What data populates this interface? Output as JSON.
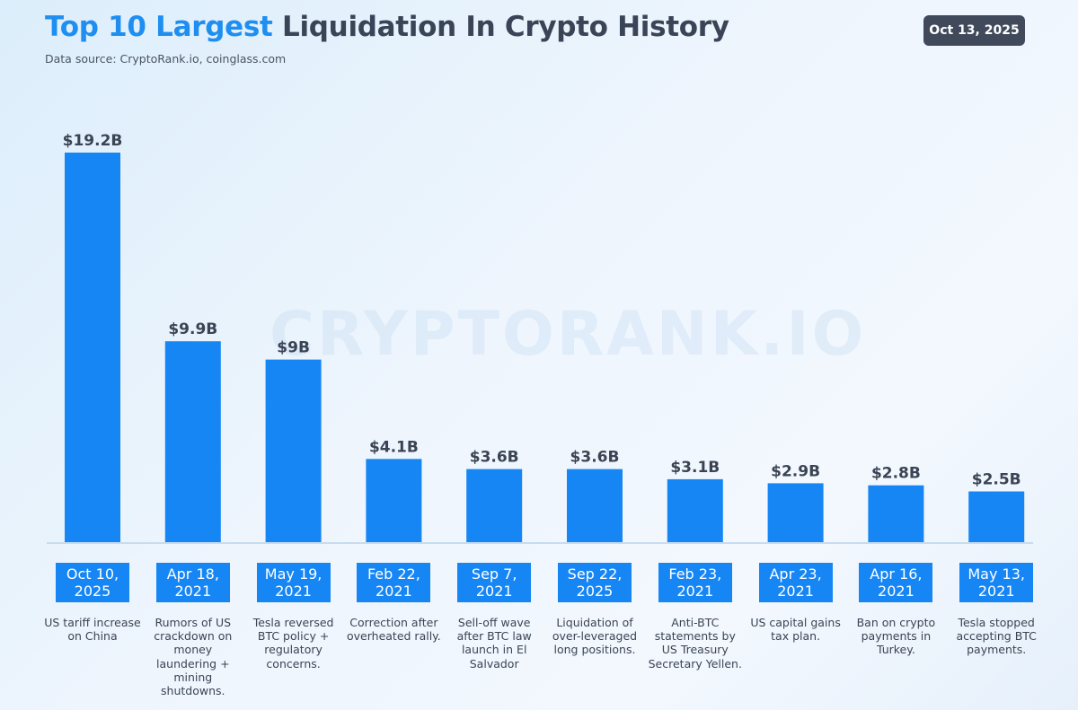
{
  "header": {
    "title_accent": "Top 10 Largest",
    "title_rest": "Liquidation In Crypto History",
    "source": "Data source: CryptoRank.io, coinglass.com",
    "date_badge": "Oct 13, 2025"
  },
  "watermark": "CRYPTORANK.IO",
  "colors": {
    "bar": "#1786f5",
    "accent": "#1f8ef1",
    "badge": "#414a5b",
    "baseline": "#c8dcf0"
  },
  "chart_data": {
    "type": "bar",
    "title": "Top 10 Largest Liquidation In Crypto History",
    "unit": "B",
    "values": [
      19.2,
      9.9,
      9.0,
      4.1,
      3.6,
      3.6,
      3.1,
      2.9,
      2.8,
      2.5
    ],
    "value_labels": [
      "$19.2B",
      "$9.9B",
      "$9B",
      "$4.1B",
      "$3.6B",
      "$3.6B",
      "$3.1B",
      "$2.9B",
      "$2.8B",
      "$2.5B"
    ],
    "categories": [
      {
        "date_line1": "Oct 10,",
        "date_line2": "2025",
        "desc": "US tariff increase on China"
      },
      {
        "date_line1": "Apr 18,",
        "date_line2": "2021",
        "desc": "Rumors of US crackdown on money laundering + mining shutdowns."
      },
      {
        "date_line1": "May 19,",
        "date_line2": "2021",
        "desc": "Tesla reversed BTC policy + regulatory concerns."
      },
      {
        "date_line1": "Feb 22,",
        "date_line2": "2021",
        "desc": "Correction after overheated rally."
      },
      {
        "date_line1": "Sep 7,",
        "date_line2": "2021",
        "desc": "Sell-off wave after BTC law launch in El Salvador"
      },
      {
        "date_line1": "Sep 22,",
        "date_line2": "2025",
        "desc": "Liquidation of over-leveraged long positions."
      },
      {
        "date_line1": "Feb 23,",
        "date_line2": "2021",
        "desc": "Anti-BTC statements by US Treasury Secretary Yellen."
      },
      {
        "date_line1": "Apr 23,",
        "date_line2": "2021",
        "desc": "US capital gains tax plan."
      },
      {
        "date_line1": "Apr 16,",
        "date_line2": "2021",
        "desc": "Ban on crypto payments in Turkey."
      },
      {
        "date_line1": "May 13,",
        "date_line2": "2021",
        "desc": "Tesla stopped accepting BTC payments."
      }
    ],
    "ylim": [
      0,
      19.2
    ],
    "grid": false,
    "legend": "none"
  }
}
